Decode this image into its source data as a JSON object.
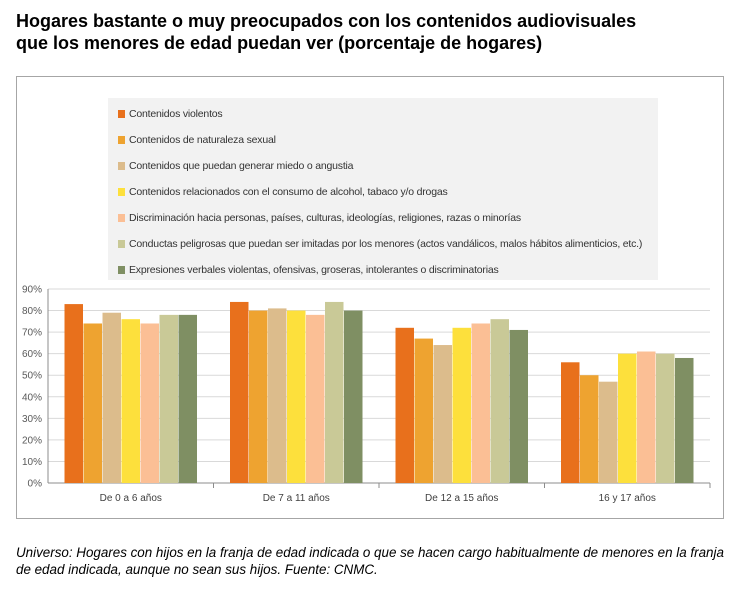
{
  "title": {
    "line1": "Hogares bastante o muy preocupados con los contenidos audiovisuales",
    "line2": "que los menores de edad puedan ver (porcentaje de hogares)"
  },
  "footnote": "Universo: Hogares con hijos en la franja de edad indicada o que se hacen cargo habitualmente de menores en la franja de edad indicada, aunque no sean sus hijos. Fuente: CNMC.",
  "chart_data": {
    "type": "bar",
    "title": "",
    "xlabel": "",
    "ylabel": "",
    "ylim": [
      0,
      90
    ],
    "yticks": [
      "0%",
      "10%",
      "20%",
      "30%",
      "40%",
      "50%",
      "60%",
      "70%",
      "80%",
      "90%"
    ],
    "grid": true,
    "legend_position": "top",
    "categories": [
      "De 0 a 6 años",
      "De 7 a 11 años",
      "De 12 a 15 años",
      "16 y 17 años"
    ],
    "series": [
      {
        "name": "Contenidos violentos",
        "color": "#e8701c",
        "values": [
          83,
          84,
          72,
          56
        ]
      },
      {
        "name": "Contenidos de naturaleza sexual",
        "color": "#eea330",
        "values": [
          74,
          80,
          67,
          50
        ]
      },
      {
        "name": "Contenidos que puedan generar miedo o angustia",
        "color": "#dcbc8c",
        "values": [
          79,
          81,
          64,
          47
        ]
      },
      {
        "name": "Contenidos relacionados con el consumo de alcohol, tabaco y/o drogas",
        "color": "#fde03c",
        "values": [
          76,
          80,
          72,
          60
        ]
      },
      {
        "name": "Discriminación hacia personas, países, culturas, ideologías, religiones, razas o minorías",
        "color": "#fbbf95",
        "values": [
          74,
          78,
          74,
          61
        ]
      },
      {
        "name": "Conductas peligrosas que puedan ser imitadas por los menores (actos vandálicos, malos hábitos alimenticios, etc.)",
        "color": "#c9c997",
        "values": [
          78,
          84,
          76,
          60
        ]
      },
      {
        "name": "Expresiones verbales violentas, ofensivas, groseras, intolerantes o discriminatorias",
        "color": "#7f8f63",
        "values": [
          78,
          80,
          71,
          58
        ]
      }
    ]
  }
}
